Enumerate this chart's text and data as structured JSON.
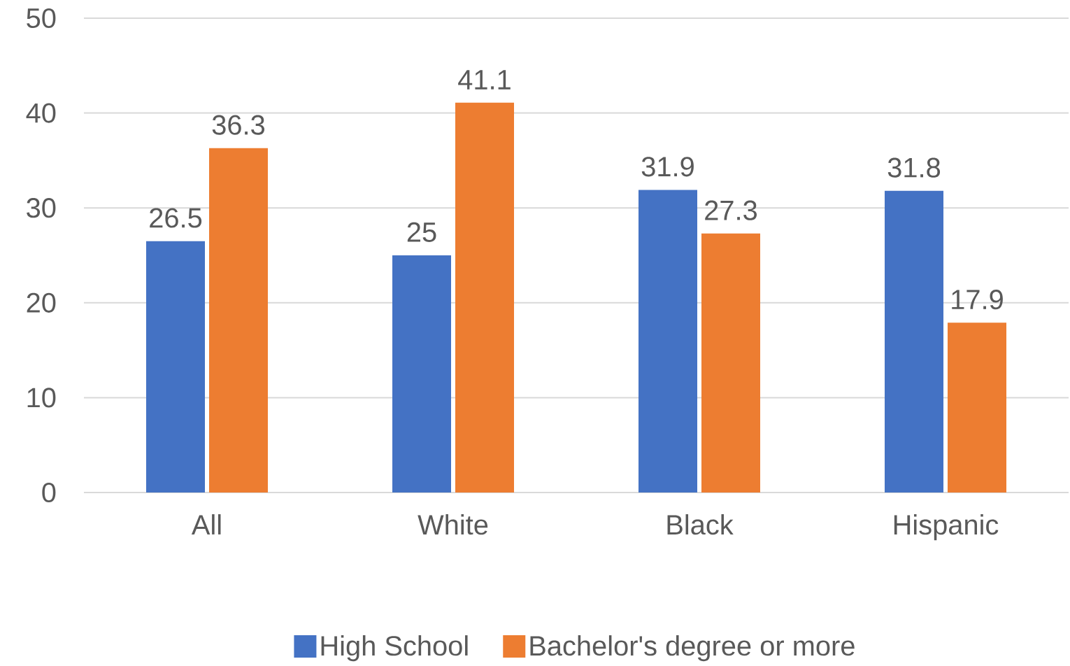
{
  "chart_data": {
    "type": "bar",
    "categories": [
      "All",
      "White",
      "Black",
      "Hispanic"
    ],
    "series": [
      {
        "name": "High School",
        "color": "#4472c4",
        "values": [
          26.5,
          25,
          31.9,
          31.8
        ]
      },
      {
        "name": "Bachelor's degree or more",
        "color": "#ed7d31",
        "values": [
          36.3,
          41.1,
          27.3,
          17.9
        ]
      }
    ],
    "ylim": [
      0,
      50
    ],
    "yticks": [
      0,
      10,
      20,
      30,
      40,
      50
    ],
    "grid": "y",
    "data_labels": true,
    "legend": "bottom"
  }
}
